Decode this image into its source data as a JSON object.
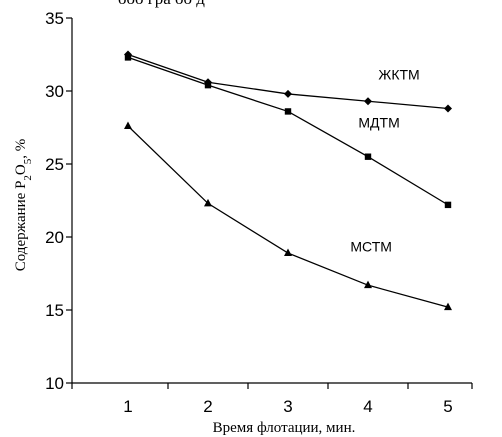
{
  "chart_data": {
    "type": "line",
    "title": "",
    "title_fragment": "ооо гра оо  д",
    "xlabel": "Время флотации, мин.",
    "ylabel_main": "Содержание P",
    "ylabel_sub1": "2",
    "ylabel_mid": "O",
    "ylabel_sub2": "5",
    "ylabel_tail": ", %",
    "x": [
      1,
      2,
      3,
      4,
      5
    ],
    "x_ticks": [
      "1",
      "2",
      "3",
      "4",
      "5"
    ],
    "y_ticks": [
      "10",
      "15",
      "20",
      "25",
      "30",
      "35"
    ],
    "xlim": [
      0.3,
      5.3
    ],
    "ylim": [
      10,
      35
    ],
    "grid": false,
    "series": [
      {
        "name": "ЖКТМ",
        "marker": "diamond",
        "values": [
          32.5,
          30.6,
          29.8,
          29.3,
          28.8
        ]
      },
      {
        "name": "МДТМ",
        "marker": "square",
        "values": [
          32.3,
          30.4,
          28.6,
          25.5,
          22.2
        ]
      },
      {
        "name": "МСТМ",
        "marker": "triangle",
        "values": [
          27.6,
          22.3,
          18.9,
          16.7,
          15.2
        ]
      }
    ]
  }
}
